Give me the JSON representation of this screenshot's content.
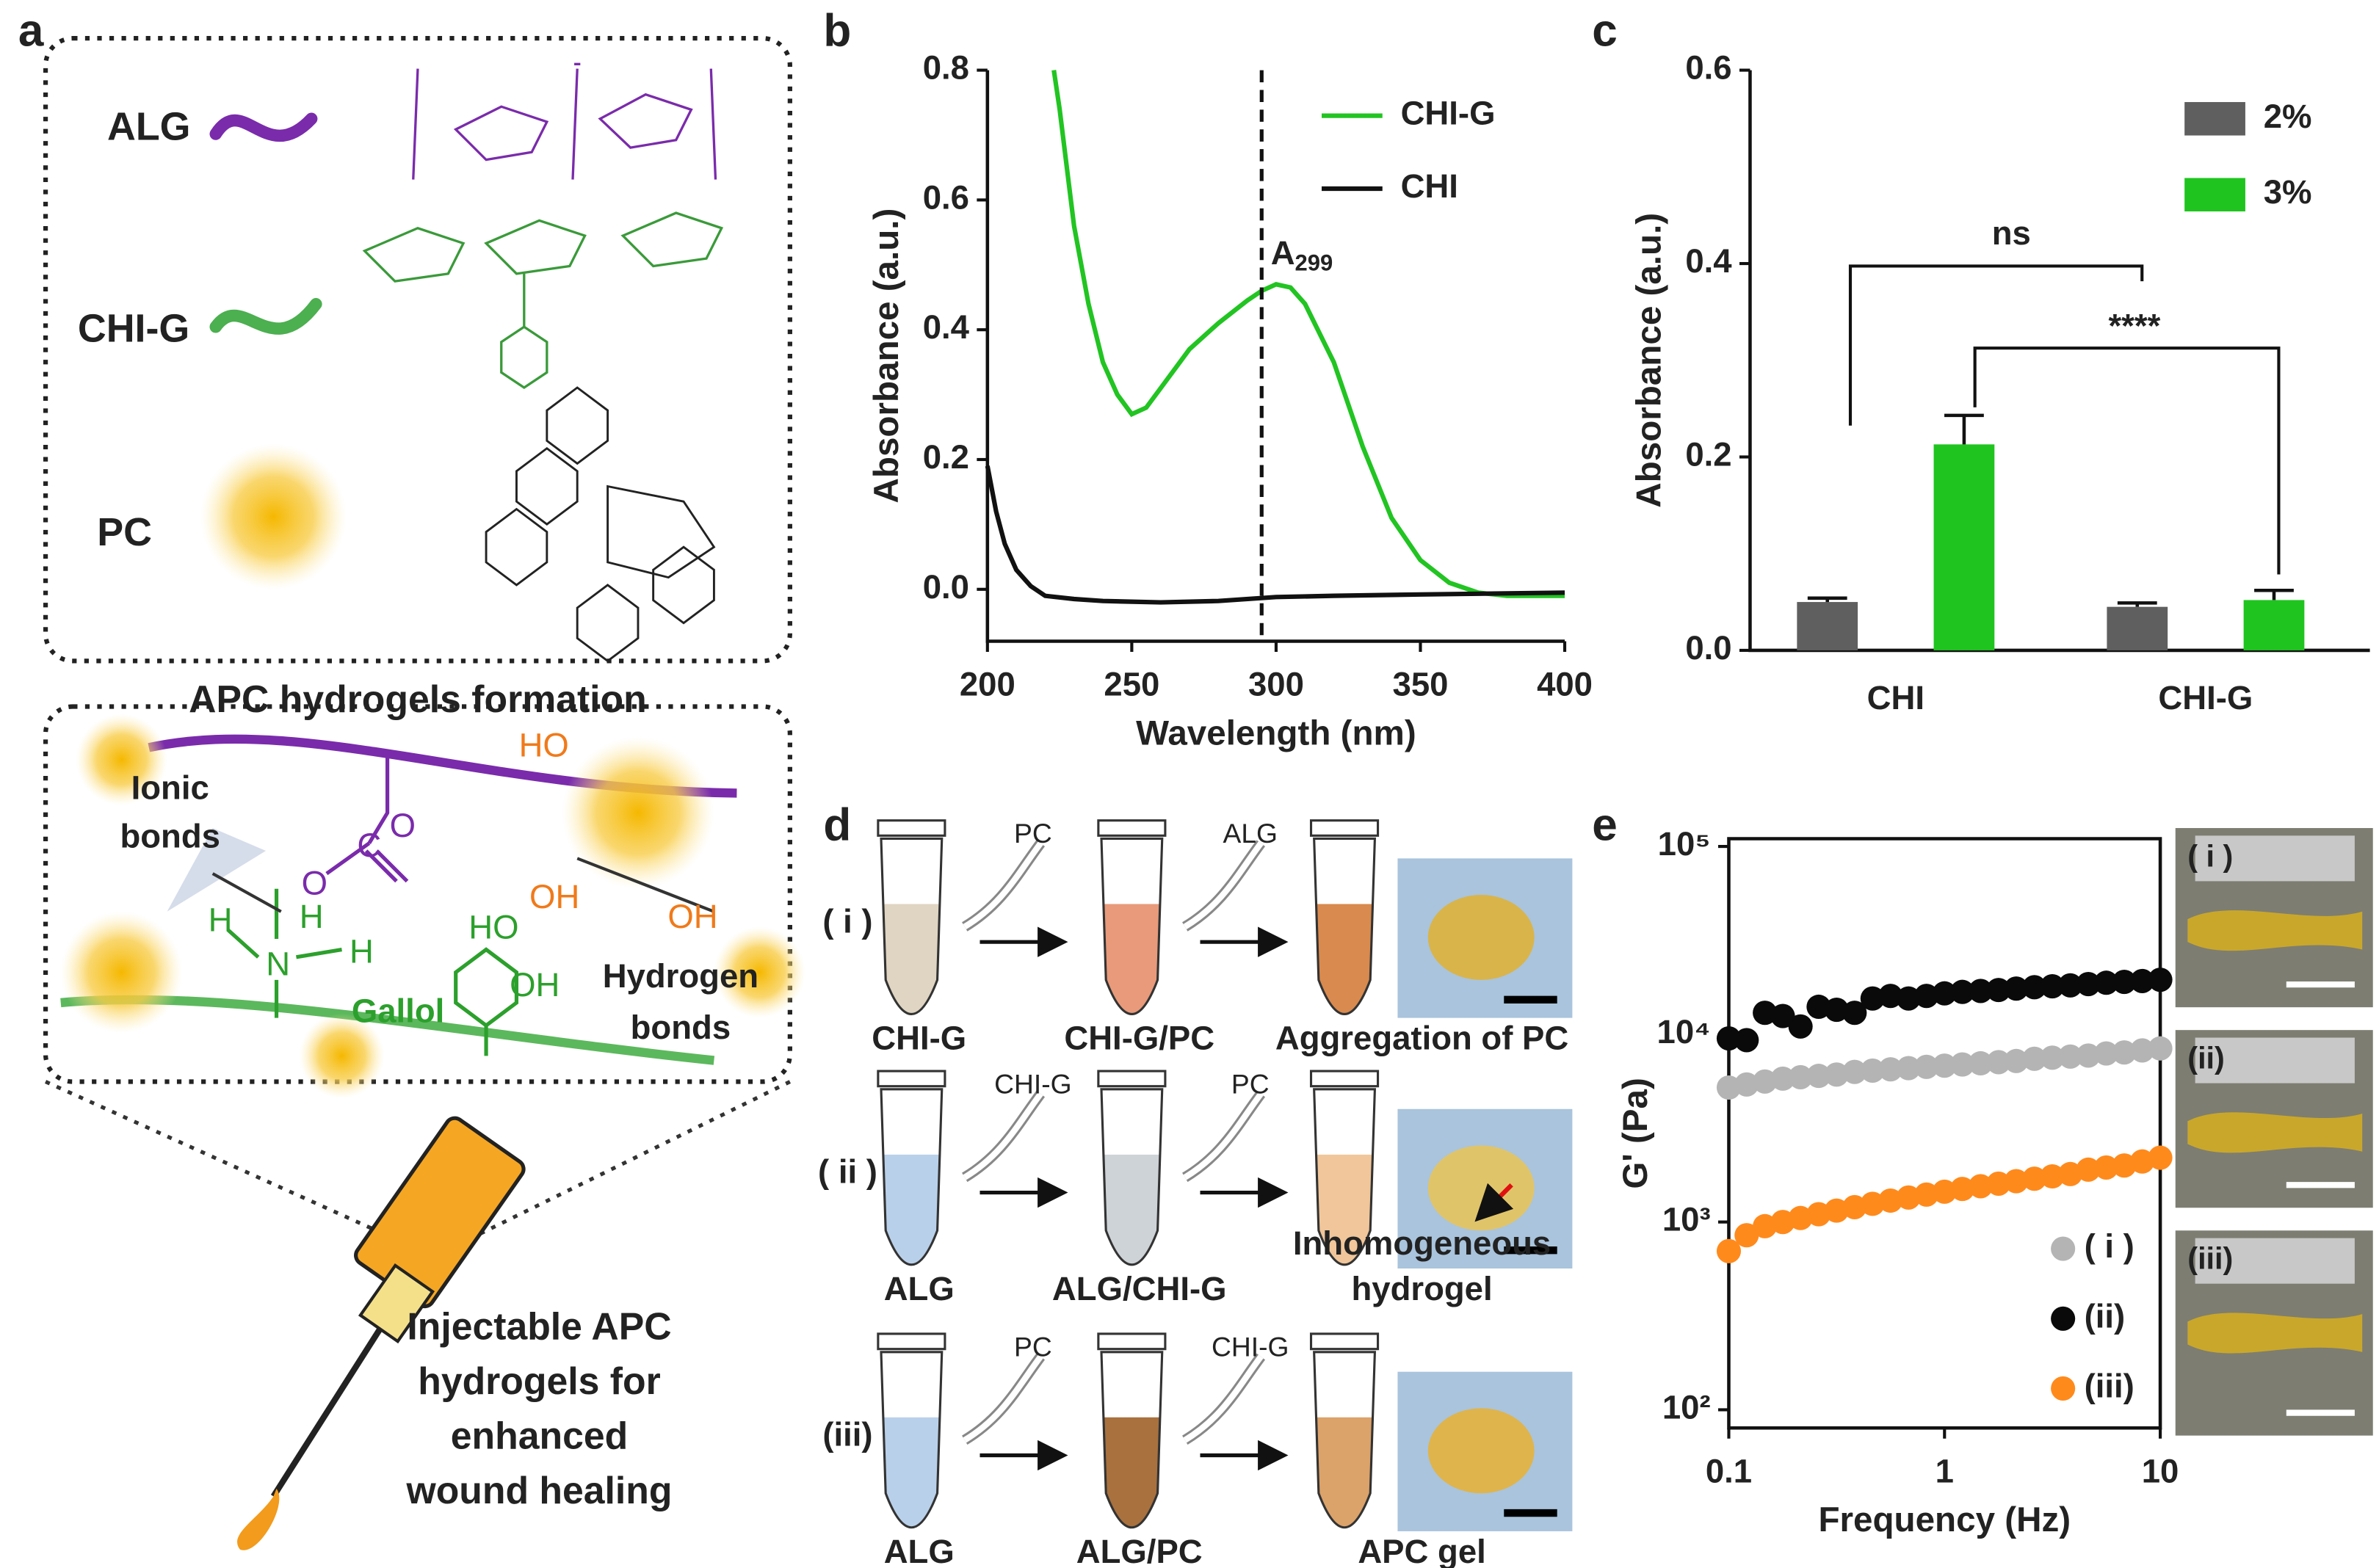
{
  "panel_labels": [
    "a",
    "b",
    "c",
    "d",
    "e"
  ],
  "scheme_a": {
    "components": [
      "ALG",
      "CHI-G",
      "PC"
    ],
    "formation_title": "APC hydrogels formation",
    "ionic": [
      "Ionic",
      "bonds"
    ],
    "hydrogen": [
      "Hydrogen",
      "bonds"
    ],
    "gallol": "Gallol",
    "atoms": [
      "O",
      "C",
      "O",
      "H",
      "N",
      "H",
      "H",
      "HO",
      "OH",
      "OH",
      "OH",
      "HO"
    ],
    "injectable": [
      "Injectable APC",
      "hydrogels for",
      "enhanced",
      "wound healing"
    ]
  },
  "scheme_d": {
    "rows": [
      {
        "label": "( i )",
        "additions": [
          "PC",
          "ALG"
        ],
        "stages": [
          "CHI-G",
          "CHI-G/PC"
        ],
        "result": [
          "Aggregation of PC"
        ]
      },
      {
        "label": "( ii )",
        "additions": [
          "CHI-G",
          "PC"
        ],
        "stages": [
          "ALG",
          "ALG/CHI-G"
        ],
        "result": [
          "Inhomogeneous",
          "hydrogel"
        ]
      },
      {
        "label": "(iii)",
        "additions": [
          "PC",
          "CHI-G"
        ],
        "stages": [
          "ALG",
          "ALG/PC"
        ],
        "result": [
          "APC gel"
        ]
      }
    ]
  },
  "photos_e": [
    "( i )",
    "(ii)",
    "(iii)"
  ],
  "chart_data": [
    {
      "type": "line",
      "xlabel": "Wavelength (nm)",
      "ylabel": "Absorbance (a.u.)",
      "xlim": [
        200,
        400
      ],
      "xticks": [
        200,
        250,
        300,
        350,
        400
      ],
      "ylim": [
        -0.08,
        0.8
      ],
      "yticks": [
        {
          "value": 0,
          "label": "0.0"
        },
        {
          "value": 0.2,
          "label": "0.2"
        },
        {
          "value": 0.4,
          "label": "0.4"
        },
        {
          "value": 0.6,
          "label": "0.6"
        },
        {
          "value": 0.8,
          "label": "0.8"
        }
      ],
      "vline": 295,
      "annotation": {
        "text": "A",
        "subscript": "299"
      },
      "legend": "upper right",
      "series": [
        {
          "name": "CHI-G",
          "color": "#22c422",
          "x": [
            223,
            225,
            230,
            235,
            240,
            245,
            250,
            255,
            260,
            270,
            280,
            290,
            295,
            300,
            305,
            310,
            320,
            330,
            340,
            350,
            360,
            370,
            380,
            400
          ],
          "values": [
            0.8,
            0.74,
            0.56,
            0.44,
            0.35,
            0.3,
            0.27,
            0.28,
            0.31,
            0.37,
            0.41,
            0.445,
            0.46,
            0.47,
            0.465,
            0.44,
            0.35,
            0.22,
            0.11,
            0.045,
            0.01,
            -0.005,
            -0.01,
            -0.01
          ]
        },
        {
          "name": "CHI",
          "color": "#111111",
          "x": [
            200,
            203,
            206,
            210,
            215,
            220,
            230,
            240,
            260,
            280,
            300,
            320,
            350,
            400
          ],
          "values": [
            0.19,
            0.12,
            0.07,
            0.03,
            0.005,
            -0.01,
            -0.015,
            -0.018,
            -0.02,
            -0.018,
            -0.012,
            -0.01,
            -0.008,
            -0.005
          ]
        }
      ]
    },
    {
      "type": "bar",
      "ylabel": "Absorbance (a.u.)",
      "categories": [
        "CHI",
        "CHI-G"
      ],
      "ylim": [
        0,
        0.6
      ],
      "yticks": [
        {
          "value": 0,
          "label": "0.0"
        },
        {
          "value": 0.2,
          "label": "0.2"
        },
        {
          "value": 0.4,
          "label": "0.4"
        },
        {
          "value": 0.6,
          "label": "0.6"
        }
      ],
      "legend": "upper right",
      "annotations": [
        "ns",
        "****"
      ],
      "series": [
        {
          "name": "2%",
          "color": "#5f5f5f",
          "values": [
            0.05,
            0.045
          ],
          "errors": [
            0.004,
            0.004
          ]
        },
        {
          "name": "3%",
          "color": "#1fc41f",
          "values": [
            0.213,
            0.052
          ],
          "errors": [
            0.03,
            0.01
          ]
        }
      ]
    },
    {
      "type": "scatter",
      "xlabel": "Frequency (Hz)",
      "ylabel": "G' (Pa)",
      "xscale": "log",
      "yscale": "log",
      "xlim": [
        0.1,
        10
      ],
      "xticks": [
        0.1,
        1,
        10
      ],
      "ylim": [
        80,
        110000
      ],
      "yticks": [
        {
          "value": 100,
          "label": "10²"
        },
        {
          "value": 1000,
          "label": "10³"
        },
        {
          "value": 10000,
          "label": "10⁴"
        },
        {
          "value": 100000,
          "label": "10⁵"
        }
      ],
      "legend": "lower right",
      "x": [
        0.1,
        0.121,
        0.147,
        0.178,
        0.215,
        0.261,
        0.316,
        0.383,
        0.464,
        0.562,
        0.681,
        0.825,
        1,
        1.21,
        1.47,
        1.78,
        2.15,
        2.61,
        3.16,
        3.83,
        4.64,
        5.62,
        6.81,
        8.25,
        10
      ],
      "series": [
        {
          "name": "( i )",
          "color": "#b4b4b4",
          "values": [
            5200,
            5400,
            5600,
            5800,
            5900,
            6000,
            6100,
            6300,
            6400,
            6500,
            6600,
            6700,
            6800,
            6900,
            7000,
            7100,
            7200,
            7400,
            7500,
            7600,
            7700,
            7900,
            8000,
            8200,
            8400
          ]
        },
        {
          "name": "(ii)",
          "color": "#0a0a0a",
          "values": [
            9500,
            9300,
            13000,
            12500,
            11000,
            14000,
            13500,
            13000,
            15500,
            16000,
            15500,
            16000,
            16500,
            16800,
            17000,
            17200,
            17500,
            17800,
            18000,
            18200,
            18500,
            18800,
            19000,
            19200,
            19500
          ]
        },
        {
          "name": "(iii)",
          "color": "#ff8a1c",
          "values": [
            700,
            850,
            950,
            1000,
            1050,
            1100,
            1150,
            1200,
            1250,
            1300,
            1350,
            1400,
            1450,
            1500,
            1550,
            1600,
            1650,
            1700,
            1750,
            1800,
            1900,
            1950,
            2000,
            2100,
            2200
          ]
        }
      ]
    }
  ]
}
